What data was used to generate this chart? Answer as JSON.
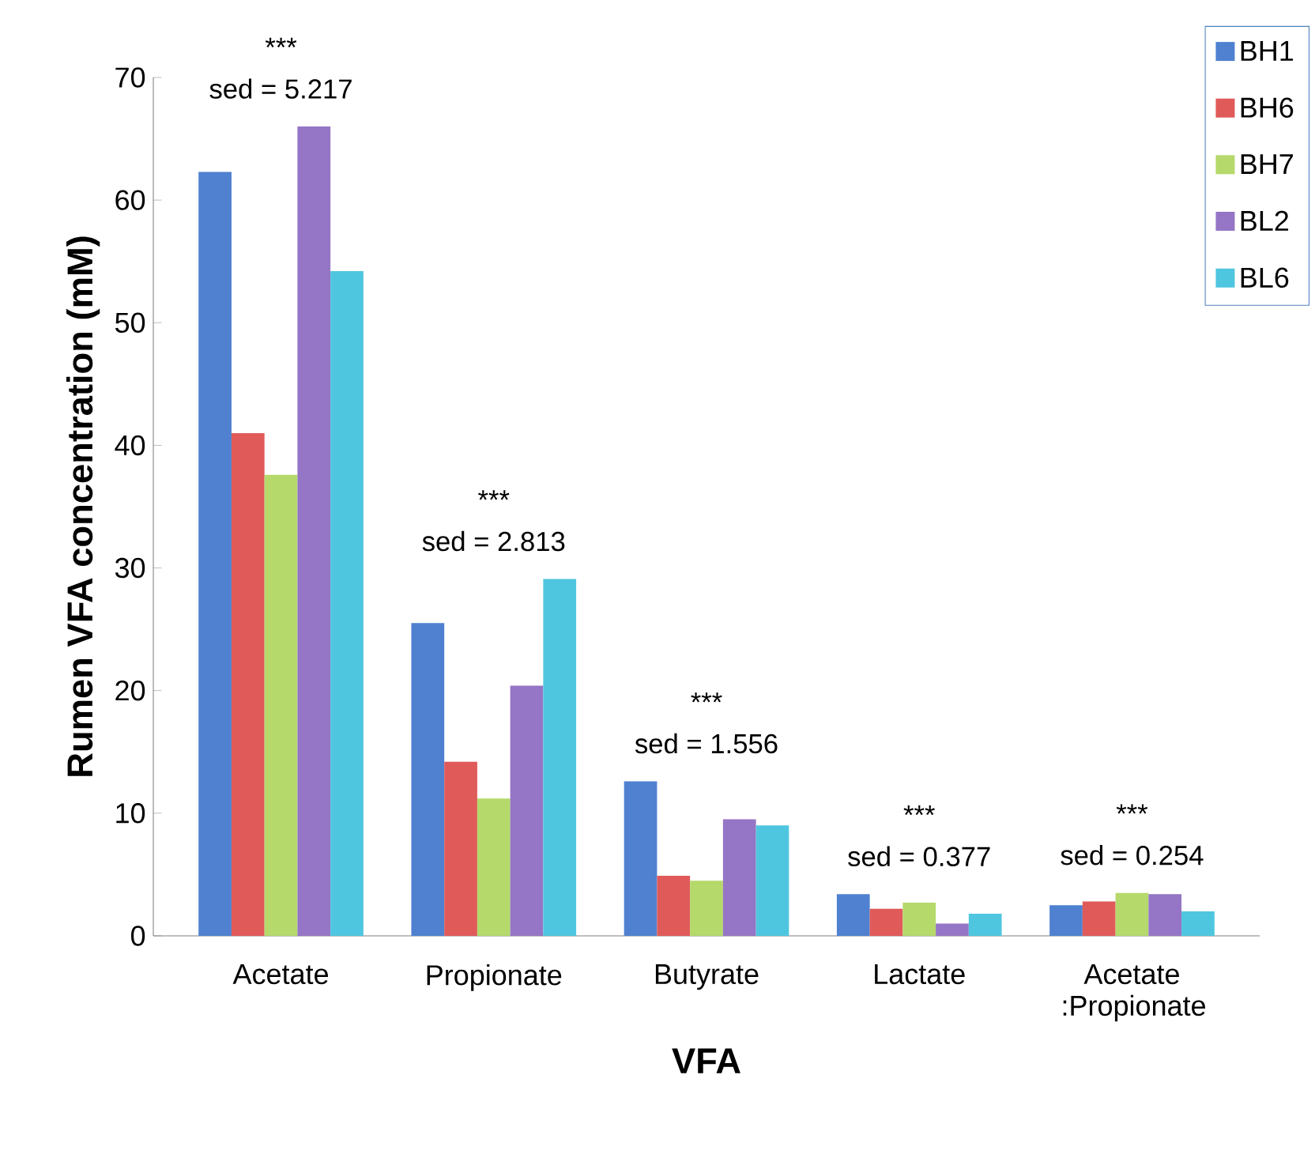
{
  "chart_data": {
    "type": "bar",
    "xlabel": "VFA",
    "ylabel": "Rumen VFA concentration (mM)",
    "categories": [
      "Acetate",
      "Propionate",
      "Butyrate",
      "Lactate",
      "Acetate :Propionate"
    ],
    "series": [
      {
        "name": "BH1",
        "color": "#4f81d0",
        "values": [
          62.3,
          25.5,
          12.6,
          3.4,
          2.5
        ]
      },
      {
        "name": "BH6",
        "color": "#e05a5a",
        "values": [
          41.0,
          14.2,
          4.9,
          2.2,
          2.8
        ]
      },
      {
        "name": "BH7",
        "color": "#b5d96a",
        "values": [
          37.6,
          11.2,
          4.5,
          2.7,
          3.5
        ]
      },
      {
        "name": "BL2",
        "color": "#9575c5",
        "values": [
          66.0,
          20.4,
          9.5,
          1.0,
          3.4
        ]
      },
      {
        "name": "BL6",
        "color": "#4fc6e0",
        "values": [
          54.2,
          29.1,
          9.0,
          1.8,
          2.0
        ]
      }
    ],
    "ylim": [
      0,
      70
    ],
    "yticks": [
      0,
      10,
      20,
      30,
      40,
      50,
      60,
      70
    ],
    "grid": false,
    "legend": "top right",
    "annotations": [
      "***",
      "sed = 5.217",
      "***",
      "sed = 2.813",
      "***",
      "sed = 1.556",
      "***",
      "sed = 0.377",
      "***",
      "sed = 0.254"
    ]
  }
}
